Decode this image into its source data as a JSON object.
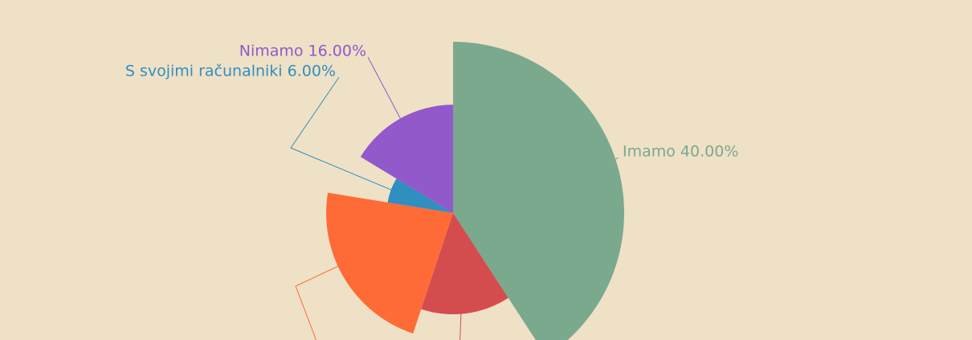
{
  "chart_data": {
    "type": "pie",
    "variant": "polar-area",
    "title": "",
    "slices": [
      {
        "label": "Imamo",
        "value": 40.0,
        "display": "Imamo 40.00%",
        "color": "#7aa98e"
      },
      {
        "label": "",
        "value": 14.0,
        "display": "",
        "color": "#d44c4e"
      },
      {
        "label": "",
        "value": 22.0,
        "display": "",
        "color": "#ff6b37"
      },
      {
        "label": "S svojimi računalniki",
        "value": 6.0,
        "display": "S svojimi računalniki 6.00%",
        "color": "#2f8fc0"
      },
      {
        "label": "Nimamo",
        "value": 16.0,
        "display": "Nimamo 16.00%",
        "color": "#9159c9"
      }
    ],
    "background": "#efe1c6"
  }
}
